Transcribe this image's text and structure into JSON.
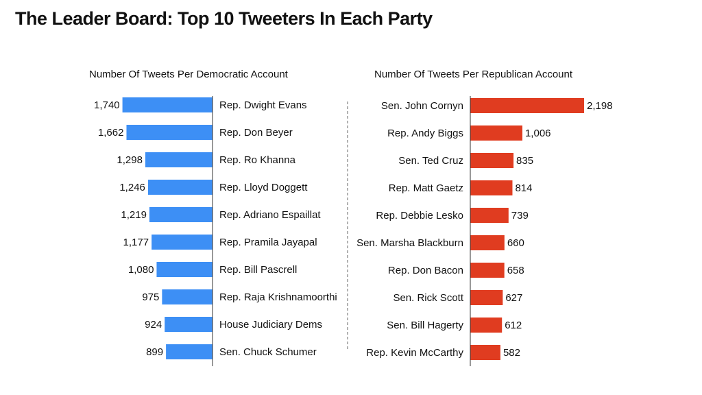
{
  "title": "The Leader Board: Top 10 Tweeters In Each Party",
  "chart_data": [
    {
      "type": "bar",
      "orientation": "horizontal",
      "direction": "right-to-left",
      "title": "Number Of Tweets Per Democratic Account",
      "color": "#3d8ff5",
      "categories": [
        "Rep. Dwight Evans",
        "Rep. Don Beyer",
        "Rep. Ro Khanna",
        "Rep. Lloyd Doggett",
        "Rep. Adriano Espaillat",
        "Rep. Pramila Jayapal",
        "Rep. Bill Pascrell",
        "Rep. Raja Krishnamoorthi",
        "House Judiciary Dems",
        "Sen. Chuck Schumer"
      ],
      "values": [
        1740,
        1662,
        1298,
        1246,
        1219,
        1177,
        1080,
        975,
        924,
        899
      ],
      "value_labels": [
        "1,740",
        "1,662",
        "1,298",
        "1,246",
        "1,219",
        "1,177",
        "1,080",
        "975",
        "924",
        "899"
      ],
      "grid": false
    },
    {
      "type": "bar",
      "orientation": "horizontal",
      "direction": "left-to-right",
      "title": "Number Of Tweets Per Republican Account",
      "color": "#e03c20",
      "categories": [
        "Sen. John Cornyn",
        "Rep. Andy Biggs",
        "Sen. Ted Cruz",
        "Rep. Matt Gaetz",
        "Rep. Debbie Lesko",
        "Sen. Marsha Blackburn",
        "Rep. Don Bacon",
        "Sen. Rick Scott",
        "Sen. Bill Hagerty",
        "Rep. Kevin McCarthy"
      ],
      "values": [
        2198,
        1006,
        835,
        814,
        739,
        660,
        658,
        627,
        612,
        582
      ],
      "value_labels": [
        "2,198",
        "1,006",
        "835",
        "814",
        "739",
        "660",
        "658",
        "627",
        "612",
        "582"
      ],
      "grid": false
    }
  ]
}
